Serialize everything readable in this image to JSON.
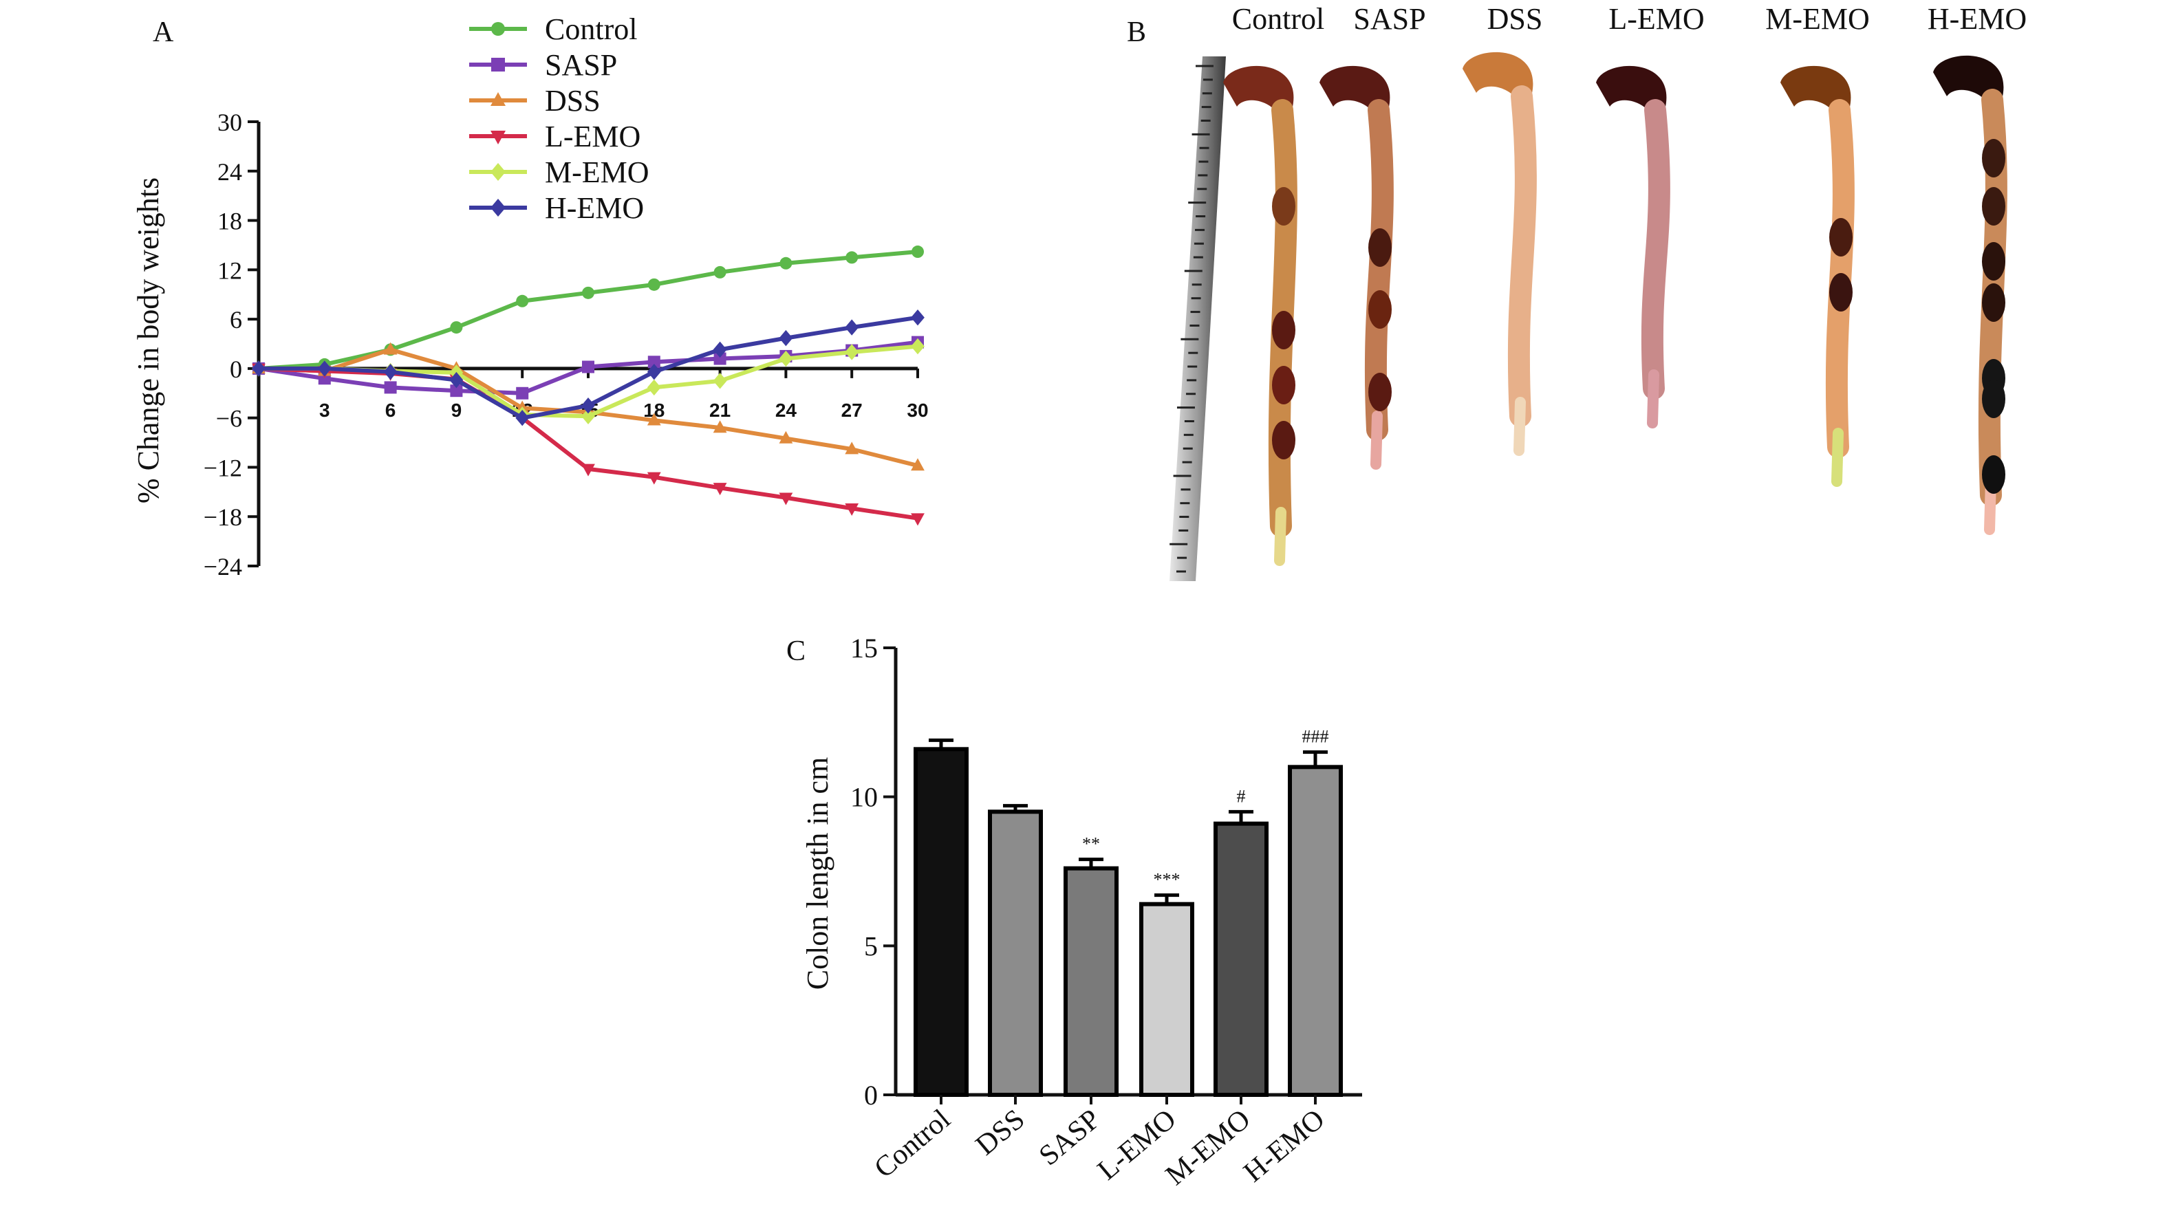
{
  "panels": {
    "a_letter": "A",
    "b_letter": "B",
    "c_letter": "C"
  },
  "photo": {
    "labels": [
      "Control",
      "SASP",
      "DSS",
      "L-EMO",
      "M-EMO",
      "H-EMO"
    ]
  },
  "chart_data": [
    {
      "type": "line",
      "title": "",
      "xlabel": "",
      "ylabel": "% Change in body weights",
      "x": [
        0,
        3,
        6,
        9,
        12,
        15,
        18,
        21,
        24,
        27,
        30
      ],
      "x_tick_labels": [
        "3",
        "6",
        "9",
        "12",
        "15",
        "18",
        "21",
        "24",
        "27",
        "30"
      ],
      "xlim": [
        0,
        30
      ],
      "ylim": [
        -24,
        30
      ],
      "y_ticks": [
        30,
        24,
        18,
        12,
        6,
        0,
        -6,
        -12,
        -18,
        -24
      ],
      "y_tick_labels": [
        "30",
        "24",
        "18",
        "12",
        "6",
        "0",
        "−6",
        "−12",
        "−18",
        "−24"
      ],
      "legend_position": "top",
      "grid": false,
      "series": [
        {
          "name": "Control",
          "color": "#5cb84a",
          "marker": "circle",
          "values": [
            0,
            0.5,
            2.3,
            5.0,
            8.2,
            9.2,
            10.2,
            11.7,
            12.8,
            13.5,
            14.2
          ]
        },
        {
          "name": "SASP",
          "color": "#7b3fb5",
          "marker": "square",
          "values": [
            0,
            -1.2,
            -2.3,
            -2.7,
            -3.0,
            0.2,
            0.8,
            1.2,
            1.5,
            2.2,
            3.2
          ]
        },
        {
          "name": "DSS",
          "color": "#e08a3c",
          "marker": "triangle-up",
          "values": [
            0,
            -0.3,
            2.3,
            0.0,
            -4.8,
            -5.3,
            -6.3,
            -7.2,
            -8.5,
            -9.8,
            -11.8
          ]
        },
        {
          "name": "L-EMO",
          "color": "#d42a4a",
          "marker": "triangle-down",
          "values": [
            0,
            -0.3,
            -0.6,
            -1.3,
            -6.0,
            -12.2,
            -13.2,
            -14.5,
            -15.7,
            -17.0,
            -18.2
          ]
        },
        {
          "name": "M-EMO",
          "color": "#c9e85a",
          "marker": "diamond",
          "values": [
            0,
            0,
            -0.3,
            -0.5,
            -5.6,
            -5.8,
            -2.3,
            -1.5,
            1.2,
            2.0,
            2.7
          ]
        },
        {
          "name": "H-EMO",
          "color": "#3b3aa0",
          "marker": "diamond",
          "values": [
            0,
            0,
            -0.4,
            -1.4,
            -6.0,
            -4.5,
            -0.4,
            2.3,
            3.7,
            5.0,
            6.2
          ]
        }
      ]
    },
    {
      "type": "bar",
      "title": "",
      "xlabel": "",
      "ylabel": "Colon length in cm",
      "categories": [
        "Control",
        "DSS",
        "SASP",
        "L-EMO",
        "M-EMO",
        "H-EMO"
      ],
      "values": [
        11.6,
        9.5,
        7.6,
        6.4,
        9.1,
        11.0
      ],
      "errors": [
        0.3,
        0.2,
        0.3,
        0.3,
        0.4,
        0.5
      ],
      "annotations": [
        "",
        "",
        "**",
        "***",
        "#",
        "###"
      ],
      "colors": [
        "#111111",
        "#8c8c8c",
        "#7a7a7a",
        "#cfcfcf",
        "#4d4d4d",
        "#8f8f8f"
      ],
      "ylim": [
        0,
        15
      ],
      "y_ticks": [
        0,
        5,
        10,
        15
      ],
      "y_tick_labels": [
        "0",
        "5",
        "10",
        "15"
      ],
      "grid": false
    }
  ]
}
